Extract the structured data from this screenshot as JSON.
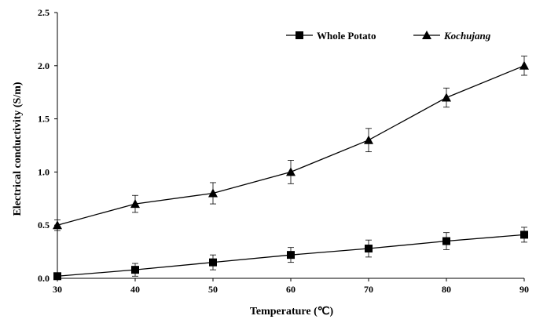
{
  "chart_data": {
    "type": "line",
    "title": "",
    "xlabel": "Temperature (℃)",
    "ylabel": "Electrical conductivity (S/m)",
    "x": [
      30,
      40,
      50,
      60,
      70,
      80,
      90
    ],
    "xlim": [
      30,
      90
    ],
    "ylim": [
      0,
      2.5
    ],
    "x_ticks": [
      "30",
      "40",
      "50",
      "60",
      "70",
      "80",
      "90"
    ],
    "y_ticks": [
      "0.0",
      "0.5",
      "1.0",
      "1.5",
      "2.0",
      "2.5"
    ],
    "grid": false,
    "legend_position": "top-right",
    "series": [
      {
        "name": "Whole Potato",
        "marker": "square",
        "color": "#000000",
        "values": [
          0.02,
          0.08,
          0.15,
          0.22,
          0.28,
          0.35,
          0.41
        ],
        "errors": [
          0.02,
          0.06,
          0.07,
          0.07,
          0.08,
          0.08,
          0.07
        ]
      },
      {
        "name": "Kochujang",
        "marker": "triangle",
        "italic": true,
        "color": "#000000",
        "values": [
          0.5,
          0.7,
          0.8,
          1.0,
          1.3,
          1.7,
          2.0
        ],
        "errors": [
          0.05,
          0.08,
          0.1,
          0.11,
          0.11,
          0.09,
          0.09
        ]
      }
    ]
  }
}
